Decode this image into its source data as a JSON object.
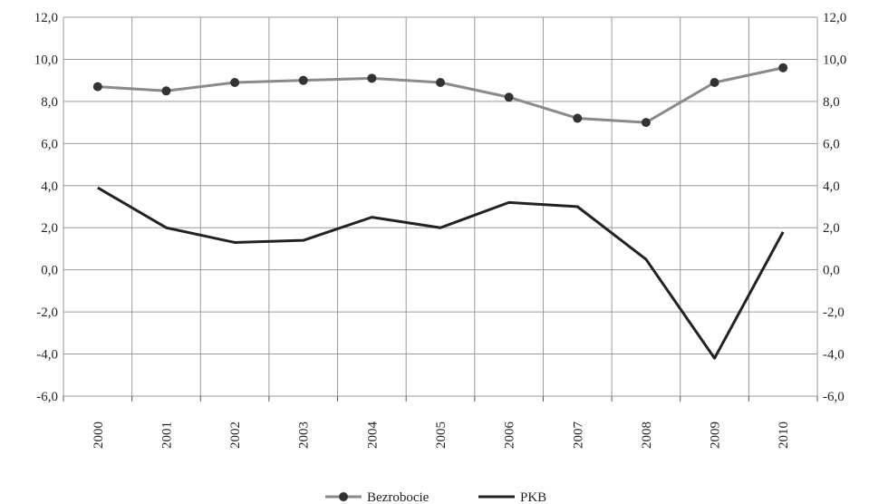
{
  "chart_data": {
    "type": "line",
    "categories": [
      "2000",
      "2001",
      "2002",
      "2003",
      "2004",
      "2005",
      "2006",
      "2007",
      "2008",
      "2009",
      "2010"
    ],
    "series": [
      {
        "name": "Bezrobocie",
        "values": [
          8.7,
          8.5,
          8.9,
          9.0,
          9.1,
          8.9,
          8.2,
          7.2,
          7.0,
          8.9,
          9.6
        ],
        "color": "#8a8a8a",
        "markers": true
      },
      {
        "name": "PKB",
        "values": [
          3.9,
          2.0,
          1.3,
          1.4,
          2.5,
          2.0,
          3.2,
          3.0,
          0.5,
          -4.2,
          1.8
        ],
        "color": "#222222",
        "markers": false
      }
    ],
    "ylim": [
      -6,
      12
    ],
    "yticks": [
      "12,0",
      "10,0",
      "8,0",
      "6,0",
      "4,0",
      "2,0",
      "0,0",
      "-2,0",
      "-4,0",
      "-6,0"
    ],
    "ytick_values": [
      12,
      10,
      8,
      6,
      4,
      2,
      0,
      -2,
      -4,
      -6
    ],
    "grid": true,
    "dual_y_axis": true,
    "legend_position": "bottom-center",
    "marker_color": "#333333"
  }
}
